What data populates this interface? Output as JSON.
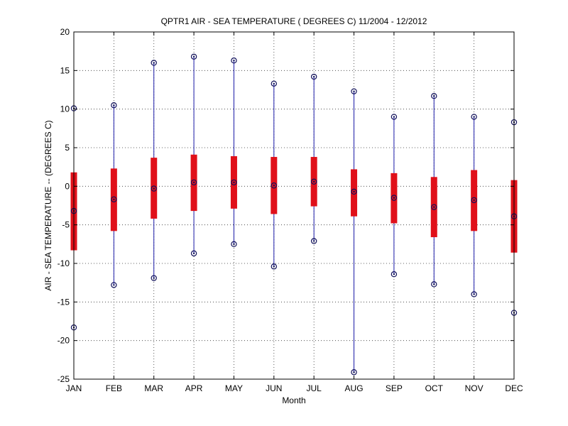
{
  "chart_data": {
    "type": "boxplot",
    "title": "QPTR1  AIR - SEA TEMPERATURE ( DEGREES C) 11/2004 - 12/2012",
    "xlabel": "Month",
    "ylabel": "AIR - SEA TEMPERATURE -- (DEGREES C)",
    "ylim": [
      -25,
      20
    ],
    "yticks": [
      -25,
      -20,
      -15,
      -10,
      -5,
      0,
      5,
      10,
      15,
      20
    ],
    "grid": true,
    "categories": [
      "JAN",
      "FEB",
      "MAR",
      "APR",
      "MAY",
      "JUN",
      "JUL",
      "AUG",
      "SEP",
      "OCT",
      "NOV",
      "DEC"
    ],
    "series": [
      {
        "min": [
          -18.3,
          -12.8,
          -11.9,
          -8.7,
          -7.5,
          -10.4,
          -7.1,
          -24.1,
          -11.4,
          -12.7,
          -14.0,
          -16.4
        ],
        "q1": [
          -8.3,
          -5.8,
          -4.2,
          -3.2,
          -2.9,
          -3.6,
          -2.6,
          -3.9,
          -4.8,
          -6.6,
          -5.8,
          -8.6
        ],
        "median": [
          -3.2,
          -1.7,
          -0.3,
          0.5,
          0.5,
          0.1,
          0.6,
          -0.7,
          -1.5,
          -2.7,
          -1.8,
          -3.9
        ],
        "q3": [
          1.8,
          2.3,
          3.7,
          4.1,
          3.9,
          3.8,
          3.8,
          2.2,
          1.7,
          1.2,
          2.1,
          0.8
        ],
        "max": [
          10.1,
          10.5,
          16.0,
          16.8,
          16.3,
          13.3,
          14.2,
          12.3,
          9.0,
          11.7,
          9.0,
          8.3
        ]
      }
    ],
    "colors": {
      "whisker": "#1a1aa8",
      "box": "#e0101a",
      "grid": "#333333"
    }
  }
}
